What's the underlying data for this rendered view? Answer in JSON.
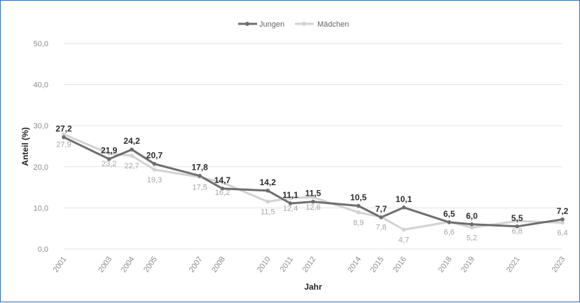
{
  "chart_data": {
    "type": "line",
    "x": [
      "2001",
      "2003",
      "2004",
      "2005",
      "2007",
      "2008",
      "2010",
      "2011",
      "2012",
      "2014",
      "2015",
      "2016",
      "2018",
      "2019",
      "2021",
      "2023"
    ],
    "series": [
      {
        "name": "Jungen",
        "color": "#6e6e6e",
        "values": [
          27.2,
          21.9,
          24.2,
          20.7,
          17.8,
          14.7,
          14.2,
          11.1,
          11.5,
          10.5,
          7.7,
          10.1,
          6.5,
          6.0,
          5.5,
          7.2
        ],
        "labels": [
          "27,2",
          "21,9",
          "24,2",
          "20,7",
          "17,8",
          "14,7",
          "14,2",
          "11,1",
          "11,5",
          "10,5",
          "7,7",
          "10,1",
          "6,5",
          "6,0",
          "5,5",
          "7,2"
        ]
      },
      {
        "name": "Mädchen",
        "color": "#d2d2d2",
        "values": [
          27.9,
          23.2,
          22.7,
          19.3,
          17.5,
          16.2,
          11.5,
          12.4,
          12.6,
          8.9,
          7.8,
          4.7,
          6.6,
          5.2,
          6.8,
          6.4
        ],
        "labels": [
          "27,9",
          "23,2",
          "22,7",
          "19,3",
          "17,5",
          "16,2",
          "11,5",
          "12,4",
          "12,6",
          "8,9",
          "7,8",
          "4,7",
          "6,6",
          "5,2",
          "6,8",
          "6,4"
        ]
      }
    ],
    "y_ticks": [
      "0,0",
      "10,0",
      "20,0",
      "30,0",
      "40,0",
      "50,0"
    ],
    "ylim": [
      0,
      50
    ],
    "xlabel": "Jahr",
    "ylabel": "Anteil (%)",
    "legend_position": "top-center",
    "grid": true
  }
}
